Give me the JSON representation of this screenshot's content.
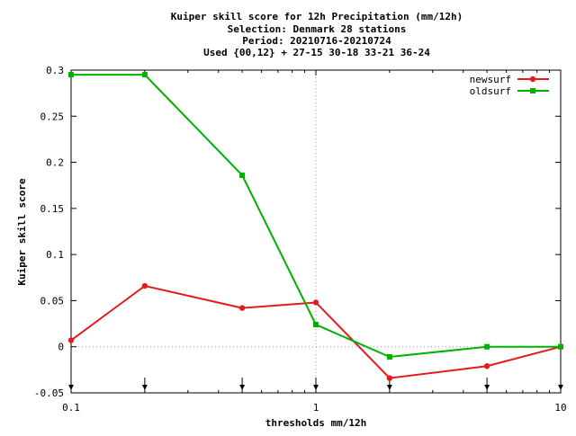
{
  "chart_data": {
    "type": "line",
    "title_lines": [
      "Kuiper skill score  for 12h Precipitation (mm/12h)",
      "Selection: Denmark     28 stations",
      "Period: 20210716-20210724",
      "Used {00,12} + 27-15 30-18 33-21 36-24"
    ],
    "xlabel": "thresholds mm/12h",
    "ylabel": "Kuiper skill score",
    "x_scale": "log",
    "xlim": [
      0.1,
      10
    ],
    "ylim": [
      -0.05,
      0.3
    ],
    "x_ticks": [
      {
        "value": 0.1,
        "label": "0.1"
      },
      {
        "value": 1,
        "label": "1"
      },
      {
        "value": 10,
        "label": "10"
      }
    ],
    "y_ticks": [
      {
        "value": 0.3,
        "label": "0.3"
      },
      {
        "value": 0.25,
        "label": "0.25"
      },
      {
        "value": 0.2,
        "label": "0.2"
      },
      {
        "value": 0.15,
        "label": "0.15"
      },
      {
        "value": 0.1,
        "label": "0.1"
      },
      {
        "value": 0.05,
        "label": "0.05"
      },
      {
        "value": 0,
        "label": "0"
      },
      {
        "value": -0.05,
        "label": "-0.05"
      }
    ],
    "threshold_markers": [
      0.1,
      0.2,
      0.5,
      1,
      2,
      5,
      10
    ],
    "grid": "dotted lines at x=1 and y=0",
    "legend_position": "top-right",
    "series": [
      {
        "name": "newsurf",
        "color": "#e41a1c",
        "marker": "circle",
        "x": [
          0.1,
          0.2,
          0.5,
          1,
          2,
          5,
          10
        ],
        "y": [
          0.007,
          0.066,
          0.042,
          0.048,
          -0.034,
          -0.021,
          0.0
        ]
      },
      {
        "name": "oldsurf",
        "color": "#00b000",
        "marker": "square",
        "x": [
          0.1,
          0.2,
          0.5,
          1,
          2,
          5,
          10
        ],
        "y": [
          0.295,
          0.295,
          0.186,
          0.024,
          -0.011,
          0.0,
          0.0
        ]
      }
    ]
  }
}
